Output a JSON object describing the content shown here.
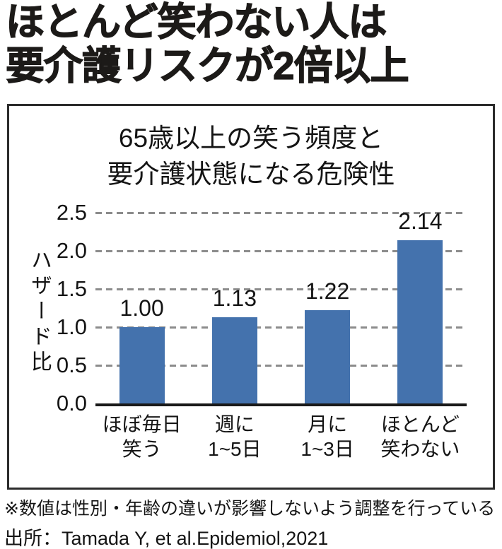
{
  "page": {
    "title_lines": [
      "ほとんど笑わない人は",
      "要介護リスクが2倍以上"
    ],
    "footnote": "※数値は性別・年齢の違いが影響しないよう調整を行っている",
    "source": "出所：Tamada Y, et al.Epidemiol,2021"
  },
  "chart_data": {
    "type": "bar",
    "title_lines": [
      "65歳以上の笑う頻度と",
      "要介護状態になる危険性"
    ],
    "categories": [
      "ほぼ毎日\n笑う",
      "週に\n1~5日",
      "月に\n1~3日",
      "ほとんど\n笑わない"
    ],
    "values": [
      1.0,
      1.13,
      1.22,
      2.14
    ],
    "value_labels": [
      "1.00",
      "1.13",
      "1.22",
      "2.14"
    ],
    "xlabel": "",
    "ylabel": "ハザード比",
    "ylim": [
      0,
      2.5
    ],
    "ytick_step": 0.5,
    "ytick_labels": [
      "0.0",
      "0.5",
      "1.0",
      "1.5",
      "2.0",
      "2.5"
    ],
    "grid": "horizontal-dashed",
    "legend": "none",
    "bar_color": "#4472ad",
    "grid_color": "#8c8c8c",
    "axis_color": "#1a1a1a"
  }
}
